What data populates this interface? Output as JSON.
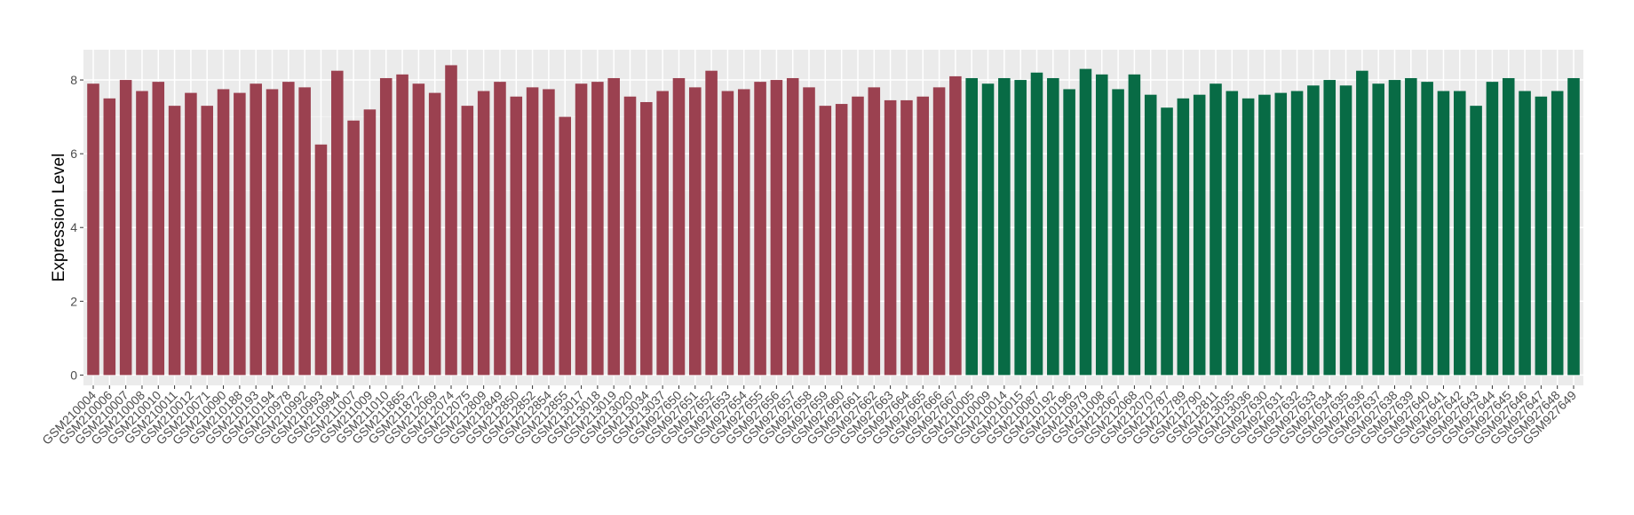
{
  "chart_data": {
    "type": "bar",
    "y_label": "Expression Level",
    "ylim": [
      -0.28,
      8.82
    ],
    "yticks": [
      0,
      2,
      4,
      6,
      8
    ],
    "grid": true,
    "series": [
      {
        "color": "#9b4150",
        "categories": [
          "GSM210004",
          "GSM210006",
          "GSM210007",
          "GSM210008",
          "GSM210010",
          "GSM210011",
          "GSM210012",
          "GSM210071",
          "GSM210090",
          "GSM210188",
          "GSM210193",
          "GSM210194",
          "GSM210978",
          "GSM210992",
          "GSM210993",
          "GSM210994",
          "GSM211007",
          "GSM211009",
          "GSM211010",
          "GSM211865",
          "GSM211872",
          "GSM212069",
          "GSM212074",
          "GSM212075",
          "GSM212809",
          "GSM212849",
          "GSM212850",
          "GSM212852",
          "GSM212854",
          "GSM212855",
          "GSM213017",
          "GSM213018",
          "GSM213019",
          "GSM213020",
          "GSM213034",
          "GSM213037",
          "GSM927650",
          "GSM927651",
          "GSM927652",
          "GSM927653",
          "GSM927654",
          "GSM927655",
          "GSM927656",
          "GSM927657",
          "GSM927658",
          "GSM927659",
          "GSM927660",
          "GSM927661",
          "GSM927662",
          "GSM927663",
          "GSM927664",
          "GSM927665",
          "GSM927666",
          "GSM927667"
        ],
        "values": [
          7.9,
          7.5,
          8.0,
          7.7,
          7.95,
          7.3,
          7.65,
          7.3,
          7.75,
          7.65,
          7.9,
          7.75,
          7.95,
          7.8,
          6.25,
          8.25,
          6.9,
          7.2,
          8.05,
          8.15,
          7.9,
          7.65,
          8.4,
          7.3,
          7.7,
          7.95,
          7.55,
          7.8,
          7.75,
          7.0,
          7.9,
          7.95,
          8.05,
          7.55,
          7.4,
          7.7,
          8.05,
          7.8,
          8.25,
          7.7,
          7.75,
          7.95,
          8.0,
          8.05,
          7.8,
          7.3,
          7.35,
          7.55,
          7.8,
          7.45,
          7.45,
          7.55,
          7.8,
          8.1
        ]
      },
      {
        "color": "#086b45",
        "categories": [
          "GSM210005",
          "GSM210009",
          "GSM210014",
          "GSM210015",
          "GSM210087",
          "GSM210192",
          "GSM210196",
          "GSM210979",
          "GSM211008",
          "GSM212067",
          "GSM212068",
          "GSM212070",
          "GSM212787",
          "GSM212789",
          "GSM212790",
          "GSM212811",
          "GSM213035",
          "GSM213036",
          "GSM927630",
          "GSM927631",
          "GSM927632",
          "GSM927633",
          "GSM927634",
          "GSM927635",
          "GSM927636",
          "GSM927637",
          "GSM927638",
          "GSM927639",
          "GSM927640",
          "GSM927641",
          "GSM927642",
          "GSM927643",
          "GSM927644",
          "GSM927645",
          "GSM927646",
          "GSM927647",
          "GSM927648",
          "GSM927649"
        ],
        "values": [
          8.05,
          7.9,
          8.05,
          8.0,
          8.2,
          8.05,
          7.75,
          8.3,
          8.15,
          7.75,
          8.15,
          7.6,
          7.25,
          7.5,
          7.6,
          7.9,
          7.7,
          7.5,
          7.6,
          7.65,
          7.7,
          7.85,
          8.0,
          7.85,
          8.25,
          7.9,
          8.0,
          8.05,
          7.95,
          7.7,
          7.7,
          7.3,
          7.95,
          8.05,
          7.7,
          7.55,
          7.7,
          8.05
        ]
      }
    ]
  }
}
